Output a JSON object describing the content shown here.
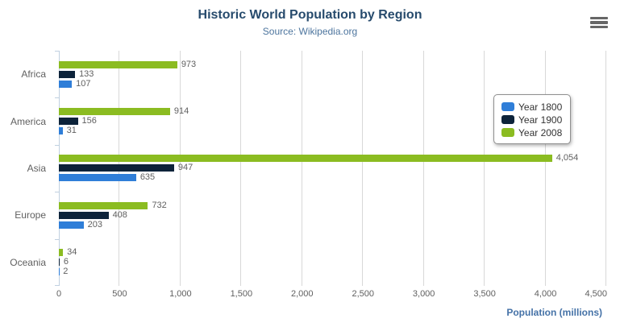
{
  "header": {
    "title": "Historic World Population by Region",
    "subtitle": "Source: Wikipedia.org"
  },
  "export_menu": {
    "icon": "hamburger-menu-icon",
    "icon_color": "#666666"
  },
  "chart_data": {
    "type": "bar",
    "orientation": "horizontal",
    "title": "Historic World Population by Region",
    "subtitle": "Source: Wikipedia.org",
    "categories": [
      "Africa",
      "America",
      "Asia",
      "Europe",
      "Oceania"
    ],
    "series": [
      {
        "name": "Year 1800",
        "color": "#2f7ed8",
        "values": [
          107,
          31,
          635,
          203,
          2
        ]
      },
      {
        "name": "Year 1900",
        "color": "#0d233a",
        "values": [
          133,
          156,
          947,
          408,
          6
        ]
      },
      {
        "name": "Year 2008",
        "color": "#8bbc21",
        "values": [
          973,
          914,
          4054,
          732,
          34
        ]
      }
    ],
    "bar_order_top_to_bottom": [
      "Year 2008",
      "Year 1900",
      "Year 1800"
    ],
    "data_labels_shown": true,
    "data_label_example": "4,054",
    "xlabel": "Population (millions)",
    "xlim": [
      0,
      4500
    ],
    "x_ticks": [
      0,
      500,
      1000,
      1500,
      2000,
      2500,
      3000,
      3500,
      4000,
      4500
    ],
    "x_tick_labels": [
      "0",
      "500",
      "1,000",
      "1,500",
      "2,000",
      "2,500",
      "3,000",
      "3,500",
      "4,000",
      "4,500"
    ],
    "grid": true,
    "legend_position": "right-middle-floating-box",
    "legend_items": [
      "Year 1800",
      "Year 1900",
      "Year 2008"
    ]
  },
  "style_colors": {
    "title": "#274b6d",
    "subtitle": "#4d759e",
    "axis_labels": "#606060",
    "axis_title": "#4572a7",
    "gridline": "#d8d8d8",
    "axis_line": "#c0d0e0",
    "legend_text": "#333333"
  }
}
